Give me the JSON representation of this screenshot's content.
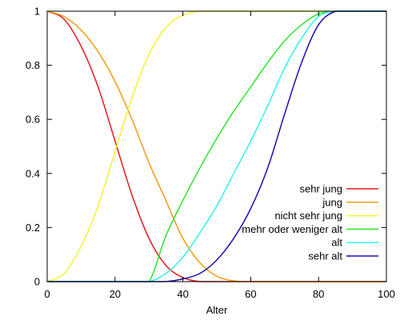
{
  "chart_data": {
    "type": "line",
    "title": "",
    "xlabel": "Alter",
    "ylabel": "",
    "xlim": [
      0,
      100
    ],
    "ylim": [
      0,
      1
    ],
    "x_ticks": [
      0,
      20,
      40,
      60,
      80,
      100
    ],
    "y_ticks": [
      0,
      0.2,
      0.4,
      0.6,
      0.8,
      1
    ],
    "y_tick_labels": [
      "0",
      "0.2",
      "0.4",
      "0.6",
      "0.8",
      "1"
    ],
    "grid": false,
    "legend_position": "bottom-right",
    "x": [
      0,
      5,
      10,
      15,
      20,
      25,
      30,
      35,
      40,
      45,
      50,
      55,
      60,
      65,
      70,
      75,
      80,
      85,
      90,
      95,
      100
    ],
    "series": [
      {
        "name": "sehr jung",
        "color": "#e31a1c",
        "values": [
          1,
          0.97,
          0.87,
          0.72,
          0.52,
          0.32,
          0.16,
          0.06,
          0.015,
          0,
          0,
          0,
          0,
          0,
          0,
          0,
          0,
          0,
          0,
          0,
          0
        ]
      },
      {
        "name": "jung",
        "color": "#f39c12",
        "values": [
          1,
          0.98,
          0.93,
          0.85,
          0.74,
          0.6,
          0.44,
          0.3,
          0.16,
          0.07,
          0.02,
          0.003,
          0,
          0,
          0,
          0,
          0,
          0,
          0,
          0,
          0
        ]
      },
      {
        "name": "nicht sehr jung",
        "color": "#f5f232",
        "values": [
          0,
          0.03,
          0.13,
          0.28,
          0.48,
          0.68,
          0.84,
          0.94,
          0.985,
          1,
          1,
          1,
          1,
          1,
          1,
          1,
          1,
          1,
          1,
          1,
          1
        ]
      },
      {
        "name": "mehr oder weniger alt",
        "color": "#2ee52e",
        "values": [
          0,
          0,
          0,
          0,
          0,
          0,
          0,
          0.17,
          0.3,
          0.42,
          0.53,
          0.63,
          0.72,
          0.81,
          0.89,
          0.95,
          0.99,
          1,
          1,
          1,
          1
        ]
      },
      {
        "name": "alt",
        "color": "#2ef2ef",
        "values": [
          0,
          0,
          0,
          0,
          0,
          0,
          0,
          0.03,
          0.09,
          0.18,
          0.28,
          0.4,
          0.52,
          0.65,
          0.79,
          0.9,
          0.98,
          1,
          1,
          1,
          1
        ]
      },
      {
        "name": "sehr alt",
        "color": "#1a0fb0",
        "values": [
          0,
          0,
          0,
          0,
          0,
          0,
          0,
          0,
          0.01,
          0.03,
          0.08,
          0.16,
          0.27,
          0.42,
          0.62,
          0.81,
          0.95,
          1,
          1,
          1,
          1
        ]
      }
    ]
  }
}
